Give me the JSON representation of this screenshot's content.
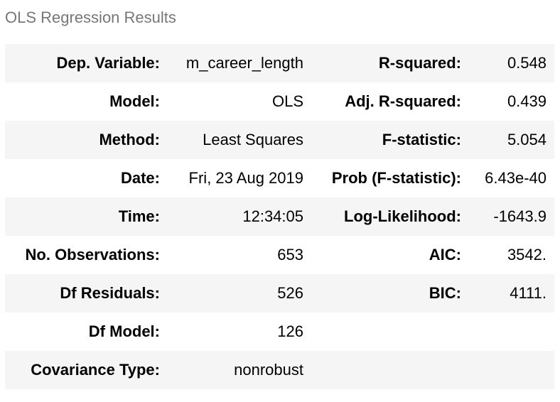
{
  "caption": "OLS Regression Results",
  "rows": [
    {
      "k1": "Dep. Variable:",
      "v1": "m_career_length",
      "k2": "R-squared:",
      "v2": "0.548"
    },
    {
      "k1": "Model:",
      "v1": "OLS",
      "k2": "Adj. R-squared:",
      "v2": "0.439"
    },
    {
      "k1": "Method:",
      "v1": "Least Squares",
      "k2": "F-statistic:",
      "v2": "5.054"
    },
    {
      "k1": "Date:",
      "v1": "Fri, 23 Aug 2019",
      "k2": "Prob (F-statistic):",
      "v2": "6.43e-40"
    },
    {
      "k1": "Time:",
      "v1": "12:34:05",
      "k2": "Log-Likelihood:",
      "v2": "-1643.9"
    },
    {
      "k1": "No. Observations:",
      "v1": "653",
      "k2": "AIC:",
      "v2": "3542."
    },
    {
      "k1": "Df Residuals:",
      "v1": "526",
      "k2": "BIC:",
      "v2": "4111."
    },
    {
      "k1": "Df Model:",
      "v1": "126",
      "k2": "",
      "v2": ""
    },
    {
      "k1": "Covariance Type:",
      "v1": "nonrobust",
      "k2": "",
      "v2": ""
    }
  ]
}
